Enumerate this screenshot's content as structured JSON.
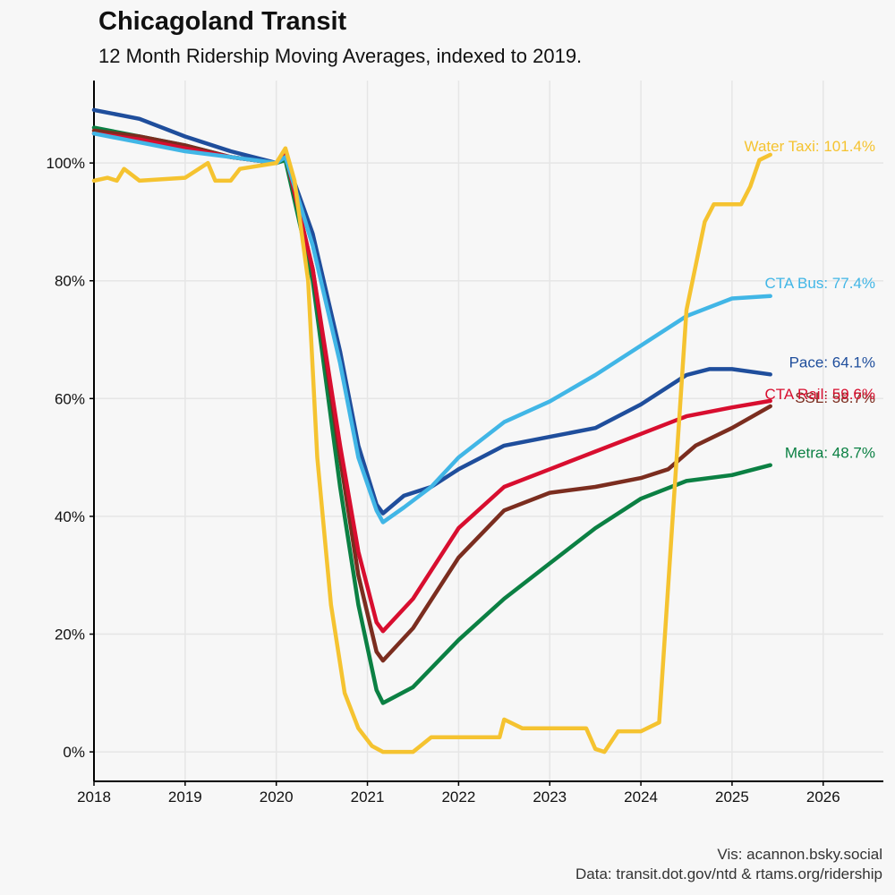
{
  "title": "Chicagoland Transit",
  "subtitle": "12 Month Ridership Moving Averages, indexed to 2019.",
  "caption_vis": "Vis: acannon.bsky.social",
  "caption_data": "Data: transit.dot.gov/ntd & rtams.org/ridership",
  "chart_data": {
    "type": "line",
    "title": "Chicagoland Transit",
    "subtitle": "12 Month Ridership Moving Averages, indexed to 2019.",
    "xlabel": "",
    "ylabel": "",
    "xlim": [
      2018,
      2026.66
    ],
    "ylim": [
      -5,
      114
    ],
    "x_ticks": [
      2018,
      2019,
      2020,
      2021,
      2022,
      2023,
      2024,
      2025,
      2026
    ],
    "x_tick_labels": [
      "2018",
      "2019",
      "2020",
      "2021",
      "2022",
      "2023",
      "2024",
      "2025",
      "2026"
    ],
    "y_ticks": [
      0,
      20,
      40,
      60,
      80,
      100
    ],
    "y_tick_labels": [
      "0%",
      "20%",
      "40%",
      "60%",
      "80%",
      "100%"
    ],
    "grid": true,
    "legend": "direct labels at line ends",
    "series": [
      {
        "name": "Metra",
        "label": "Metra: 48.7%",
        "color": "#0b8043",
        "points": [
          [
            2018,
            106
          ],
          [
            2018.5,
            104.5
          ],
          [
            2019,
            103
          ],
          [
            2019.5,
            101
          ],
          [
            2020,
            100
          ],
          [
            2020.1,
            100.5
          ],
          [
            2020.4,
            80
          ],
          [
            2020.7,
            45
          ],
          [
            2020.9,
            25
          ],
          [
            2021.1,
            10.5
          ],
          [
            2021.17,
            8.3
          ],
          [
            2021.5,
            11
          ],
          [
            2022,
            19
          ],
          [
            2022.5,
            26
          ],
          [
            2023,
            32
          ],
          [
            2023.5,
            38
          ],
          [
            2024,
            43
          ],
          [
            2024.5,
            46
          ],
          [
            2025,
            47
          ],
          [
            2025.42,
            48.7
          ]
        ]
      },
      {
        "name": "SSL",
        "label": "SSL: 58.7%",
        "color": "#7b2d1f",
        "points": [
          [
            2018,
            105.5
          ],
          [
            2018.5,
            104.5
          ],
          [
            2019,
            103
          ],
          [
            2019.5,
            101
          ],
          [
            2020,
            100
          ],
          [
            2020.1,
            101.5
          ],
          [
            2020.4,
            82
          ],
          [
            2020.7,
            50
          ],
          [
            2020.9,
            30
          ],
          [
            2021.1,
            17
          ],
          [
            2021.17,
            15.5
          ],
          [
            2021.5,
            21
          ],
          [
            2022,
            33
          ],
          [
            2022.5,
            41
          ],
          [
            2023,
            44
          ],
          [
            2023.5,
            45
          ],
          [
            2024,
            46.5
          ],
          [
            2024.3,
            48
          ],
          [
            2024.6,
            52
          ],
          [
            2025,
            55
          ],
          [
            2025.42,
            58.7
          ]
        ]
      },
      {
        "name": "CTA Rail",
        "label": "CTA Rail: 59.6%",
        "color": "#d80e2f",
        "points": [
          [
            2018,
            105
          ],
          [
            2018.5,
            104
          ],
          [
            2019,
            102.5
          ],
          [
            2019.5,
            101
          ],
          [
            2020,
            100
          ],
          [
            2020.1,
            101.5
          ],
          [
            2020.4,
            82
          ],
          [
            2020.7,
            52
          ],
          [
            2020.9,
            34
          ],
          [
            2021.1,
            22
          ],
          [
            2021.17,
            20.5
          ],
          [
            2021.5,
            26
          ],
          [
            2022,
            38
          ],
          [
            2022.5,
            45
          ],
          [
            2023,
            48
          ],
          [
            2023.5,
            51
          ],
          [
            2024,
            54
          ],
          [
            2024.5,
            57
          ],
          [
            2025,
            58.5
          ],
          [
            2025.42,
            59.6
          ]
        ]
      },
      {
        "name": "Pace",
        "label": "Pace: 64.1%",
        "color": "#1f4e9c",
        "points": [
          [
            2018,
            109
          ],
          [
            2018.5,
            107.5
          ],
          [
            2019,
            104.5
          ],
          [
            2019.5,
            102
          ],
          [
            2020,
            100
          ],
          [
            2020.1,
            101
          ],
          [
            2020.4,
            88
          ],
          [
            2020.7,
            68
          ],
          [
            2020.9,
            52
          ],
          [
            2021.1,
            42
          ],
          [
            2021.17,
            40.5
          ],
          [
            2021.4,
            43.5
          ],
          [
            2021.7,
            45
          ],
          [
            2022,
            48
          ],
          [
            2022.5,
            52
          ],
          [
            2023,
            53.5
          ],
          [
            2023.5,
            55
          ],
          [
            2024,
            59
          ],
          [
            2024.5,
            64
          ],
          [
            2024.75,
            65
          ],
          [
            2025,
            65
          ],
          [
            2025.42,
            64.1
          ]
        ]
      },
      {
        "name": "CTA Bus",
        "label": "CTA Bus: 77.4%",
        "color": "#41b6e6",
        "points": [
          [
            2018,
            105
          ],
          [
            2018.5,
            103.5
          ],
          [
            2019,
            102
          ],
          [
            2019.5,
            101
          ],
          [
            2020,
            100
          ],
          [
            2020.1,
            101
          ],
          [
            2020.4,
            86
          ],
          [
            2020.7,
            66
          ],
          [
            2020.9,
            50
          ],
          [
            2021.1,
            41
          ],
          [
            2021.17,
            39
          ],
          [
            2021.4,
            41.5
          ],
          [
            2021.7,
            45
          ],
          [
            2022,
            50
          ],
          [
            2022.5,
            56
          ],
          [
            2023,
            59.5
          ],
          [
            2023.5,
            64
          ],
          [
            2024,
            69
          ],
          [
            2024.5,
            74
          ],
          [
            2025,
            77
          ],
          [
            2025.42,
            77.4
          ]
        ]
      },
      {
        "name": "Water Taxi",
        "label": "Water Taxi: 101.4%",
        "color": "#f5c330",
        "points": [
          [
            2018,
            97
          ],
          [
            2018.15,
            97.5
          ],
          [
            2018.25,
            97
          ],
          [
            2018.33,
            99
          ],
          [
            2018.5,
            97
          ],
          [
            2019,
            97.5
          ],
          [
            2019.25,
            100
          ],
          [
            2019.33,
            97
          ],
          [
            2019.5,
            97
          ],
          [
            2019.6,
            99
          ],
          [
            2020,
            100
          ],
          [
            2020.1,
            102.5
          ],
          [
            2020.2,
            97
          ],
          [
            2020.35,
            80
          ],
          [
            2020.45,
            50
          ],
          [
            2020.6,
            25
          ],
          [
            2020.75,
            10
          ],
          [
            2020.9,
            4
          ],
          [
            2021.05,
            1
          ],
          [
            2021.17,
            0
          ],
          [
            2021.5,
            0
          ],
          [
            2021.7,
            2.5
          ],
          [
            2022,
            2.5
          ],
          [
            2022.45,
            2.5
          ],
          [
            2022.5,
            5.5
          ],
          [
            2022.7,
            4
          ],
          [
            2023,
            4
          ],
          [
            2023.4,
            4
          ],
          [
            2023.5,
            0.5
          ],
          [
            2023.6,
            0
          ],
          [
            2023.75,
            3.5
          ],
          [
            2024,
            3.5
          ],
          [
            2024.2,
            5
          ],
          [
            2024.35,
            40
          ],
          [
            2024.5,
            75
          ],
          [
            2024.7,
            90
          ],
          [
            2024.8,
            93
          ],
          [
            2025.1,
            93
          ],
          [
            2025.2,
            96
          ],
          [
            2025.3,
            100.5
          ],
          [
            2025.42,
            101.4
          ]
        ]
      }
    ]
  }
}
